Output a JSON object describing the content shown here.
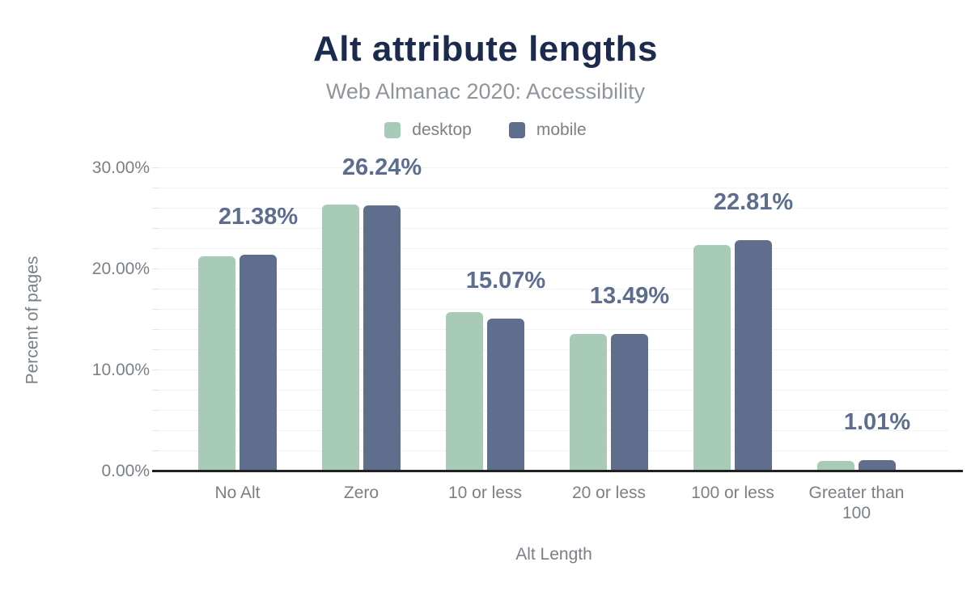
{
  "header": {
    "title": "Alt attribute lengths",
    "subtitle": "Web Almanac 2020: Accessibility"
  },
  "legend": [
    {
      "label": "desktop",
      "color": "#a8cbb8"
    },
    {
      "label": "mobile",
      "color": "#5f6e8c"
    }
  ],
  "axes": {
    "y_title": "Percent of pages",
    "x_title": "Alt Length",
    "y_ticks": [
      "0.00%",
      "10.00%",
      "20.00%",
      "30.00%"
    ]
  },
  "chart_data": {
    "type": "bar",
    "title": "Alt attribute lengths",
    "subtitle": "Web Almanac 2020: Accessibility",
    "categories": [
      "No Alt",
      "Zero",
      "10 or less",
      "20 or less",
      "100 or less",
      "Greater than 100"
    ],
    "series": [
      {
        "name": "desktop",
        "color": "#a8cbb8",
        "values": [
          21.2,
          26.3,
          15.7,
          13.5,
          22.3,
          0.95
        ]
      },
      {
        "name": "mobile",
        "color": "#5f6e8c",
        "values": [
          21.38,
          26.24,
          15.07,
          13.49,
          22.81,
          1.01
        ]
      }
    ],
    "data_labels": [
      "21.38%",
      "26.24%",
      "15.07%",
      "13.49%",
      "22.81%",
      "1.01%"
    ],
    "data_labels_series": "mobile",
    "xlabel": "Alt Length",
    "ylabel": "Percent of pages",
    "ylim": [
      0,
      30
    ],
    "grid": "horizontal minor lines every 2%, labeled every 10%",
    "legend_position": "top"
  },
  "colors": {
    "title": "#1c2b4d",
    "subtitle": "#8e959c",
    "axis_text": "#7a8087",
    "data_label": "#5d6d8e",
    "desktop_bar": "#a8cbb8",
    "mobile_bar": "#5f6e8c",
    "gridline": "#f1f2f4",
    "axis_line": "#212121"
  }
}
